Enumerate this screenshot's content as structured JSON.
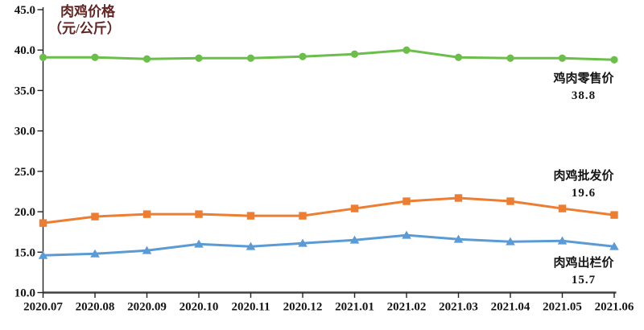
{
  "title": {
    "line1": "肉鸡价格",
    "line2": "（元/公斤）"
  },
  "chart_data": {
    "type": "line",
    "title": "肉鸡价格（元/公斤）",
    "categories": [
      "2020.07",
      "2020.08",
      "2020.09",
      "2020.10",
      "2020.11",
      "2020.12",
      "2021.01",
      "2021.02",
      "2021.03",
      "2021.04",
      "2021.05",
      "2021.06"
    ],
    "series": [
      {
        "name": "鸡肉零售价",
        "values": [
          39.1,
          39.1,
          38.9,
          39.0,
          39.0,
          39.2,
          39.5,
          40.0,
          39.1,
          39.0,
          39.0,
          38.8
        ],
        "color": "#6CBE4B",
        "marker": "circle",
        "end_label": "38.8"
      },
      {
        "name": "肉鸡批发价",
        "values": [
          18.6,
          19.4,
          19.7,
          19.7,
          19.5,
          19.5,
          20.4,
          21.3,
          21.7,
          21.3,
          20.4,
          19.6
        ],
        "color": "#ED7D31",
        "marker": "square",
        "end_label": "19.6"
      },
      {
        "name": "肉鸡出栏价",
        "values": [
          14.6,
          14.8,
          15.2,
          16.0,
          15.7,
          16.1,
          16.5,
          17.1,
          16.6,
          16.3,
          16.4,
          15.7
        ],
        "color": "#5B9BD5",
        "marker": "triangle",
        "end_label": "15.7"
      }
    ],
    "ylim": [
      10,
      45
    ],
    "ytick_step": 5,
    "ytick_format_decimals": 1,
    "grid": false,
    "legend_position": "inline-right-annotations"
  },
  "colors": {
    "title": "#632523",
    "x_axis_line": "#404040",
    "y_axis_line": "#222222",
    "tick_label": "#151515"
  }
}
